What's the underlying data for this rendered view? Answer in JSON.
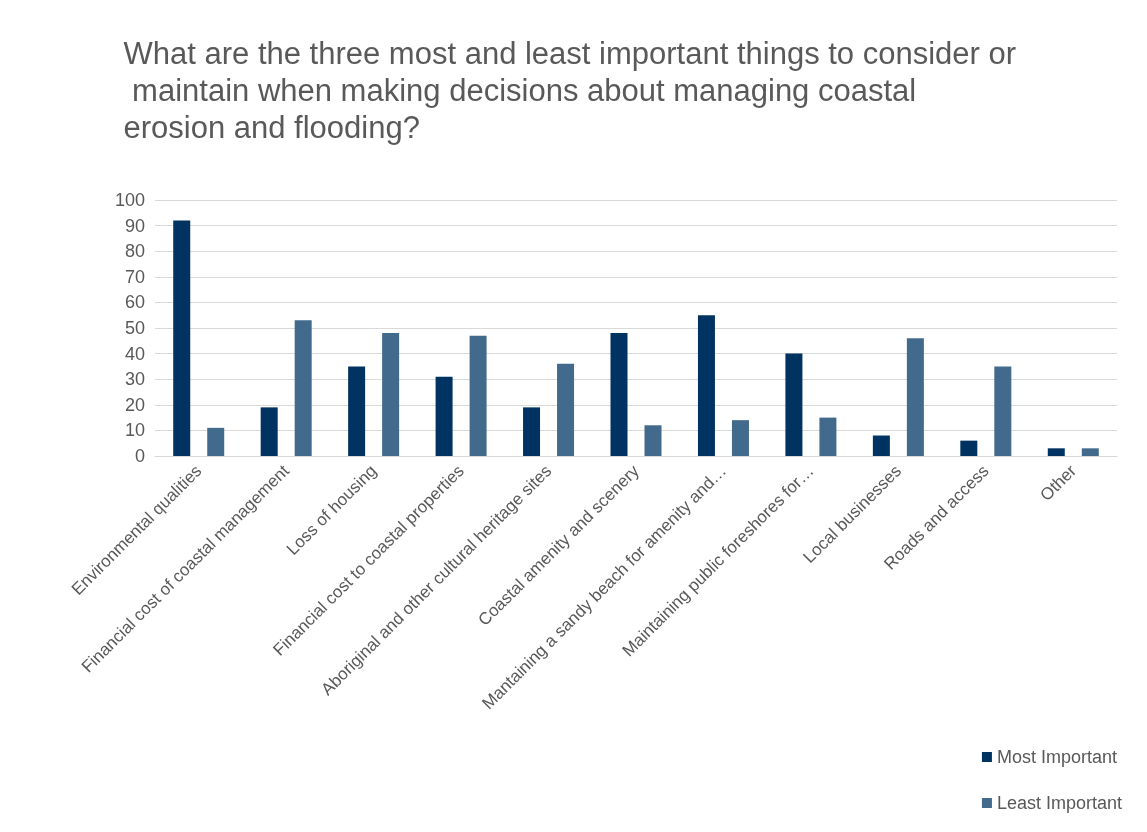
{
  "chart_data": {
    "type": "bar",
    "title": "What are the three most and least important things to consider or maintain when making decisions about managing coastal erosion and flooding?",
    "categories": [
      "Environmental qualities",
      "Financial cost of coastal management",
      "Loss of housing",
      "Financial cost to coastal properties",
      "Aboriginal and other cultural heritage sites",
      "Coastal amenity and scenery",
      "Mantaining a sandy beach for amenity and…",
      "Maintaining public foreshores for…",
      "Local businesses",
      "Roads and access",
      "Other"
    ],
    "series": [
      {
        "name": "Most Important",
        "color": "#003361",
        "values": [
          92,
          19,
          35,
          31,
          19,
          48,
          55,
          40,
          8,
          6,
          3
        ]
      },
      {
        "name": "Least Important",
        "color": "#416a8d",
        "values": [
          11,
          53,
          48,
          47,
          36,
          12,
          14,
          15,
          46,
          35,
          3
        ]
      }
    ],
    "ylim": [
      0,
      100
    ],
    "yticks": [
      0,
      10,
      20,
      30,
      40,
      50,
      60,
      70,
      80,
      90,
      100
    ],
    "grid": "y",
    "legend": "bottom right"
  }
}
